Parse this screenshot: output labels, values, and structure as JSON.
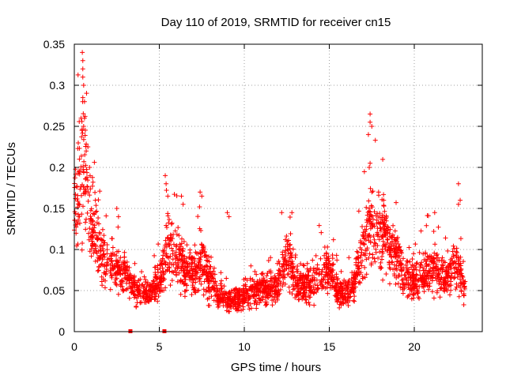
{
  "chart_data": {
    "type": "scatter",
    "title": "Day 110 of 2019, SRMTID for receiver cn15",
    "xlabel": "GPS time / hours",
    "ylabel": "SRMTID / TECUs",
    "xlim": [
      0,
      24
    ],
    "ylim": [
      0,
      0.35
    ],
    "xticks": [
      0,
      5,
      10,
      15,
      20
    ],
    "xtick_labels": [
      "0",
      "5",
      "10",
      "15",
      "20"
    ],
    "yticks": [
      0,
      0.05,
      0.1,
      0.15,
      0.2,
      0.25,
      0.3,
      0.35
    ],
    "ytick_labels": [
      "0",
      "0.05",
      "0.1",
      "0.15",
      "0.2",
      "0.25",
      "0.3",
      "0.35"
    ],
    "grid": true,
    "marker": "+",
    "color": "#ff0000",
    "zero_markers": [
      3.3,
      5.3
    ],
    "trend": [
      [
        0.0,
        0.14
      ],
      [
        0.2,
        0.17
      ],
      [
        0.4,
        0.2
      ],
      [
        0.6,
        0.19
      ],
      [
        0.8,
        0.16
      ],
      [
        1.0,
        0.13
      ],
      [
        1.3,
        0.11
      ],
      [
        1.6,
        0.09
      ],
      [
        2.0,
        0.08
      ],
      [
        2.5,
        0.075
      ],
      [
        3.0,
        0.07
      ],
      [
        3.5,
        0.055
      ],
      [
        4.0,
        0.045
      ],
      [
        4.5,
        0.05
      ],
      [
        5.0,
        0.06
      ],
      [
        5.5,
        0.1
      ],
      [
        6.0,
        0.09
      ],
      [
        6.5,
        0.08
      ],
      [
        7.0,
        0.07
      ],
      [
        7.5,
        0.085
      ],
      [
        8.0,
        0.06
      ],
      [
        8.5,
        0.045
      ],
      [
        9.0,
        0.04
      ],
      [
        9.5,
        0.04
      ],
      [
        10.0,
        0.045
      ],
      [
        10.5,
        0.05
      ],
      [
        11.0,
        0.055
      ],
      [
        11.5,
        0.05
      ],
      [
        12.0,
        0.06
      ],
      [
        12.5,
        0.09
      ],
      [
        13.0,
        0.06
      ],
      [
        13.5,
        0.055
      ],
      [
        14.0,
        0.06
      ],
      [
        14.5,
        0.07
      ],
      [
        15.0,
        0.075
      ],
      [
        15.5,
        0.05
      ],
      [
        16.0,
        0.045
      ],
      [
        16.5,
        0.06
      ],
      [
        17.0,
        0.1
      ],
      [
        17.5,
        0.13
      ],
      [
        18.0,
        0.12
      ],
      [
        18.5,
        0.1
      ],
      [
        19.0,
        0.09
      ],
      [
        19.5,
        0.065
      ],
      [
        20.0,
        0.06
      ],
      [
        20.5,
        0.07
      ],
      [
        21.0,
        0.08
      ],
      [
        21.5,
        0.07
      ],
      [
        22.0,
        0.065
      ],
      [
        22.5,
        0.08
      ],
      [
        23.0,
        0.055
      ]
    ],
    "spikes": [
      [
        0.5,
        0.33
      ],
      [
        0.5,
        0.32
      ],
      [
        0.5,
        0.31
      ],
      [
        0.55,
        0.3
      ],
      [
        0.5,
        0.285
      ],
      [
        0.6,
        0.28
      ],
      [
        0.6,
        0.26
      ],
      [
        0.55,
        0.25
      ],
      [
        0.45,
        0.245
      ],
      [
        0.7,
        0.22
      ],
      [
        0.8,
        0.225
      ],
      [
        0.3,
        0.21
      ],
      [
        0.9,
        0.2
      ],
      [
        17.4,
        0.265
      ],
      [
        17.4,
        0.255
      ],
      [
        17.5,
        0.25
      ],
      [
        17.3,
        0.24
      ],
      [
        17.4,
        0.205
      ],
      [
        17.35,
        0.2
      ],
      [
        17.5,
        0.17
      ],
      [
        5.35,
        0.19
      ],
      [
        5.4,
        0.18
      ],
      [
        5.5,
        0.165
      ],
      [
        6.3,
        0.165
      ],
      [
        6.4,
        0.155
      ],
      [
        7.4,
        0.17
      ],
      [
        7.5,
        0.165
      ],
      [
        9.0,
        0.145
      ],
      [
        9.1,
        0.14
      ],
      [
        12.8,
        0.145
      ],
      [
        12.2,
        0.145
      ],
      [
        22.6,
        0.18
      ],
      [
        22.7,
        0.16
      ],
      [
        22.6,
        0.155
      ],
      [
        21.2,
        0.145
      ],
      [
        2.5,
        0.15
      ],
      [
        2.6,
        0.14
      ],
      [
        17.9,
        0.17
      ],
      [
        18.2,
        0.16
      ]
    ]
  }
}
